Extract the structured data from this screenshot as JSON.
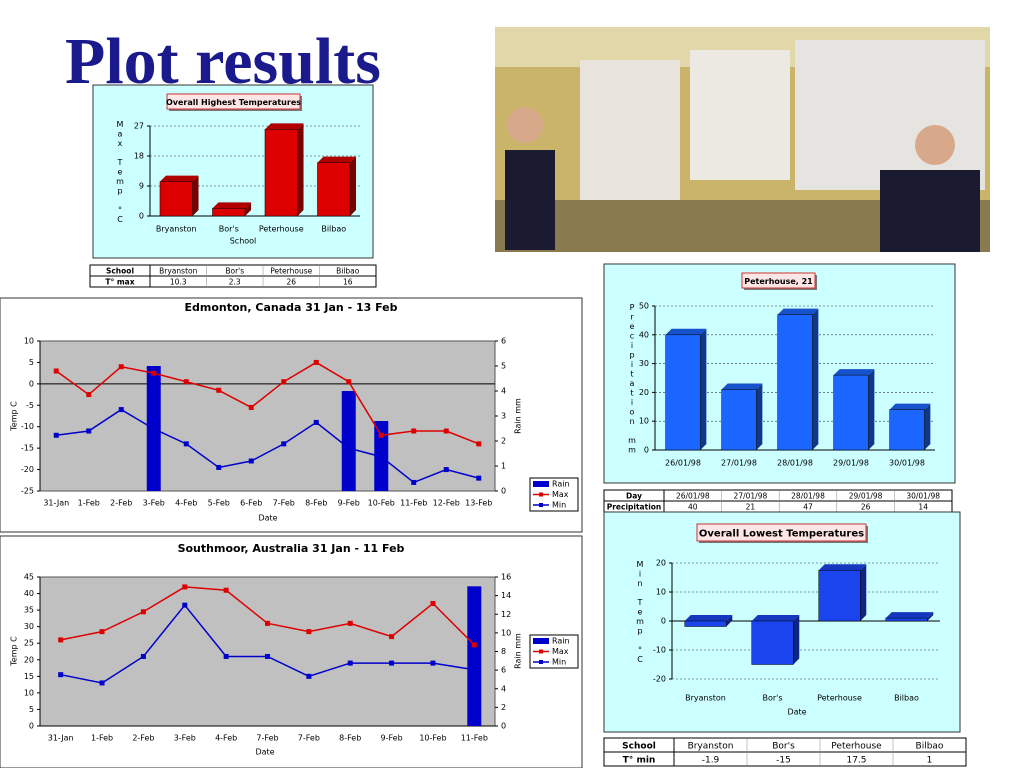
{
  "title": "Plot results",
  "chart_data": [
    {
      "type": "bar",
      "title": "Overall Highest Temperatures",
      "y_label": "Max Temp °C",
      "x_label": "School",
      "categories": [
        "Bryanston",
        "Bor's",
        "Peterhouse",
        "Bilbao"
      ],
      "values": [
        10.3,
        2.3,
        26,
        16
      ],
      "color": "#dd0000",
      "ylim": [
        0,
        27
      ],
      "yticks": [
        0,
        9,
        18,
        27
      ],
      "grid": true,
      "table": {
        "header": "School",
        "row_label": "T° max"
      }
    },
    {
      "type": "combo",
      "title": "Edmonton, Canada 31 Jan - 13 Feb",
      "y_label": "Temp C",
      "y2_label": "Rain mm",
      "x_label": "Date",
      "categories": [
        "31-Jan",
        "1-Feb",
        "2-Feb",
        "3-Feb",
        "4-Feb",
        "5-Feb",
        "6-Feb",
        "7-Feb",
        "8-Feb",
        "9-Feb",
        "10-Feb",
        "11-Feb",
        "12-Feb",
        "13-Feb"
      ],
      "series": [
        {
          "name": "Rain",
          "type": "bar",
          "axis": "y2",
          "color": "#0000cc",
          "values": [
            0,
            0,
            0,
            5,
            0,
            0,
            0,
            0,
            0,
            4,
            2.8,
            0,
            0,
            0
          ]
        },
        {
          "name": "Max",
          "type": "line",
          "color": "#dd0000",
          "values": [
            3,
            -2.5,
            4,
            2.5,
            0.5,
            -1.5,
            -5.5,
            0.5,
            5,
            0.5,
            -12,
            -11,
            -11,
            -14
          ]
        },
        {
          "name": "Min",
          "type": "line",
          "color": "#0000cc",
          "values": [
            -12,
            -11,
            -6,
            -10.5,
            -14,
            -19.5,
            -18,
            -14,
            -9,
            -15,
            -17,
            -23,
            -20,
            -22
          ]
        }
      ],
      "ylim": [
        -25,
        10
      ],
      "yticks": [
        -25,
        -20,
        -15,
        -10,
        -5,
        0,
        5,
        10
      ],
      "y2lim": [
        0,
        6
      ],
      "y2ticks": [
        0,
        1,
        2,
        3,
        4,
        5,
        6
      ],
      "grid": false,
      "legend": "right"
    },
    {
      "type": "combo",
      "title": "Southmoor, Australia 31 Jan - 11 Feb",
      "y_label": "Temp C",
      "y2_label": "Rain mm",
      "x_label": "Date",
      "categories": [
        "31-Jan",
        "1-Feb",
        "2-Feb",
        "3-Feb",
        "4-Feb",
        "7-Feb",
        "7-Feb",
        "8-Feb",
        "9-Feb",
        "10-Feb",
        "11-Feb"
      ],
      "series": [
        {
          "name": "Rain",
          "type": "bar",
          "axis": "y2",
          "color": "#0000cc",
          "values": [
            0,
            0,
            0,
            0,
            0,
            0,
            0,
            0,
            0,
            0,
            15
          ]
        },
        {
          "name": "Max",
          "type": "line",
          "color": "#dd0000",
          "values": [
            26,
            28.5,
            34.5,
            42,
            41,
            31,
            28.5,
            31,
            27,
            37,
            24.5
          ]
        },
        {
          "name": "Min",
          "type": "line",
          "color": "#0000cc",
          "values": [
            15.5,
            13,
            21,
            36.5,
            21,
            21,
            15,
            19,
            19,
            19,
            17
          ]
        }
      ],
      "ylim": [
        0,
        45
      ],
      "yticks": [
        0,
        5,
        10,
        15,
        20,
        25,
        30,
        35,
        40,
        45
      ],
      "y2lim": [
        0,
        16
      ],
      "y2ticks": [
        0,
        2,
        4,
        6,
        8,
        10,
        12,
        14,
        16
      ],
      "grid": false,
      "legend": "right"
    },
    {
      "type": "bar",
      "title": "Peterhouse, 21",
      "y_label": "Precipitation mm",
      "categories": [
        "26/01/98",
        "27/01/98",
        "28/01/98",
        "29/01/98",
        "30/01/98"
      ],
      "values": [
        40,
        21,
        47,
        26,
        14
      ],
      "color": "#1a66ff",
      "ylim": [
        0,
        50
      ],
      "yticks": [
        0,
        10,
        20,
        30,
        40,
        50
      ],
      "grid": true,
      "table": {
        "header": "Day",
        "row_label": "Precipitation"
      }
    },
    {
      "type": "bar",
      "title": "Overall Lowest Temperatures",
      "y_label": "Min Temp °C",
      "x_label": "Date",
      "categories": [
        "Bryanston",
        "Bor's",
        "Peterhouse",
        "Bilbao"
      ],
      "values": [
        -1.9,
        -15,
        17.5,
        1
      ],
      "color": "#1a44ee",
      "ylim": [
        -20,
        20
      ],
      "yticks": [
        -20,
        -10,
        0,
        10,
        20
      ],
      "grid": true,
      "table": {
        "header": "School",
        "row_label": "T° min"
      }
    }
  ]
}
